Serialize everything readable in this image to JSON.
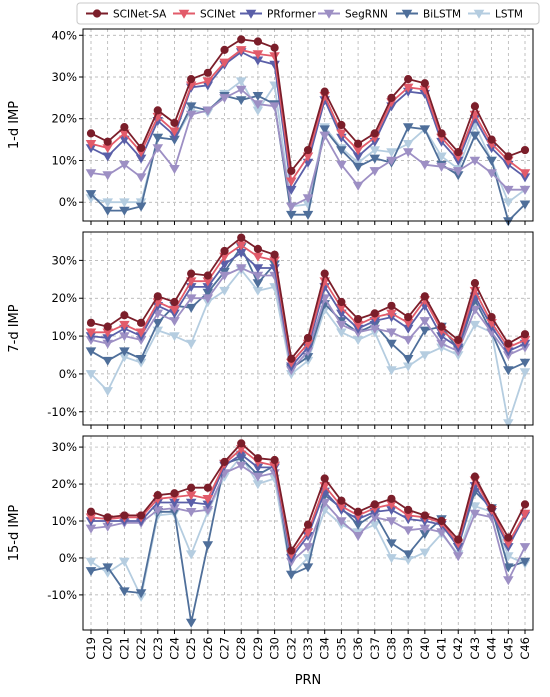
{
  "chart_data": {
    "type": "line",
    "xlabel": "PRN",
    "categories": [
      "C19",
      "C20",
      "C21",
      "C22",
      "C23",
      "C24",
      "C25",
      "C26",
      "C27",
      "C28",
      "C29",
      "C30",
      "C32",
      "C33",
      "C34",
      "C35",
      "C36",
      "C37",
      "C38",
      "C39",
      "C40",
      "C41",
      "C42",
      "C43",
      "C44",
      "C45",
      "C46"
    ],
    "legend": {
      "placement": "top",
      "entries": [
        {
          "name": "SCINet-SA",
          "color": "#7b1e2a",
          "marker": "circle"
        },
        {
          "name": "SCINet",
          "color": "#e25b6a",
          "marker": "triangle-down"
        },
        {
          "name": "PRformer",
          "color": "#5a5fa8",
          "marker": "triangle-down"
        },
        {
          "name": "SegRNN",
          "color": "#9d8fc4",
          "marker": "triangle-down"
        },
        {
          "name": "BiLSTM",
          "color": "#4f6f9a",
          "marker": "triangle-down"
        },
        {
          "name": "LSTM",
          "color": "#b5cde0",
          "marker": "triangle-down"
        }
      ]
    },
    "grid": true,
    "panels": [
      {
        "ylabel": "1-d IMP",
        "ylim": [
          -4.5,
          41.5
        ],
        "yticks": [
          0,
          10,
          20,
          30,
          40
        ],
        "ytick_labels": [
          "0%",
          "10%",
          "20%",
          "30%",
          "40%"
        ],
        "series": [
          {
            "name": "SCINet-SA",
            "values": [
              16.5,
              14.5,
              18,
              13,
              22,
              19,
              29.5,
              31,
              36.5,
              39,
              38.5,
              37,
              7.5,
              12.5,
              26.5,
              18.5,
              14,
              16.5,
              25,
              29.5,
              28.5,
              16.5,
              12,
              23,
              15,
              11,
              12.5
            ]
          },
          {
            "name": "SCINet",
            "values": [
              14,
              13,
              16.5,
              12,
              20.5,
              17,
              28,
              29,
              33.5,
              36.5,
              35.5,
              35,
              5,
              11,
              25.5,
              16.5,
              12.5,
              15.5,
              24,
              27.5,
              27,
              15.5,
              11,
              21,
              14,
              10,
              7
            ]
          },
          {
            "name": "PRformer",
            "values": [
              13,
              11,
              15,
              10.5,
              19.5,
              16,
              27.5,
              28,
              33,
              36,
              34,
              33,
              3,
              9.5,
              24.5,
              15.5,
              11,
              14.5,
              23,
              26.5,
              26,
              14.5,
              10,
              20,
              13,
              9,
              6
            ]
          },
          {
            "name": "SegRNN",
            "values": [
              7,
              6.5,
              9,
              6,
              13,
              8,
              21,
              22,
              25,
              27,
              23.5,
              23,
              -1,
              1,
              16,
              9,
              4,
              7.5,
              10,
              12,
              9,
              8.5,
              7.5,
              10,
              7,
              3,
              3
            ]
          },
          {
            "name": "BiLSTM",
            "values": [
              2,
              -2,
              -2,
              -1,
              15.5,
              15,
              23,
              22,
              25.5,
              24.5,
              25.5,
              23.5,
              -3,
              -3,
              17.5,
              12.5,
              8.5,
              10.5,
              9.5,
              18,
              17.5,
              9,
              6.5,
              16,
              10,
              -4.5,
              -0.5
            ]
          },
          {
            "name": "LSTM",
            "values": [
              1,
              0,
              0,
              0,
              15.5,
              15,
              22,
              21.5,
              26,
              29,
              22,
              28,
              -1,
              -0.5,
              18,
              13,
              9.5,
              12.5,
              12,
              14,
              17.5,
              11,
              8,
              18.5,
              10,
              0,
              3
            ]
          }
        ]
      },
      {
        "ylabel": "7-d IMP",
        "ylim": [
          -13.5,
          37.5
        ],
        "yticks": [
          -10,
          0,
          10,
          20,
          30
        ],
        "ytick_labels": [
          "-10%",
          "0%",
          "10%",
          "20%",
          "30%"
        ],
        "series": [
          {
            "name": "SCINet-SA",
            "values": [
              13.5,
              12.5,
              15.5,
              13.5,
              20.5,
              19,
              26.5,
              26,
              32.5,
              36,
              33,
              31.5,
              4,
              9.5,
              26.5,
              19,
              14.5,
              16,
              18,
              15,
              20.5,
              12.5,
              9,
              24,
              15,
              8,
              10.5
            ]
          },
          {
            "name": "SCINet",
            "values": [
              11,
              11,
              13,
              11,
              19,
              17,
              24.5,
              24.5,
              31,
              34,
              31,
              30,
              3,
              8,
              24.5,
              17.5,
              13,
              15,
              16,
              13.5,
              19.5,
              11.5,
              8,
              22,
              13.5,
              7,
              9
            ]
          },
          {
            "name": "PRformer",
            "values": [
              10,
              9.5,
              12,
              10,
              18,
              16,
              23,
              23,
              29,
              32,
              28,
              28,
              2,
              7,
              23,
              16,
              12,
              14,
              15,
              12,
              18,
              10,
              7,
              20.5,
              12.5,
              6,
              8
            ]
          },
          {
            "name": "SegRNN",
            "values": [
              9,
              8,
              10,
              9,
              16,
              14,
              20,
              20,
              26,
              28,
              26,
              26,
              1,
              6,
              20,
              13,
              11,
              12,
              11,
              9,
              14,
              8,
              6,
              17,
              11,
              5,
              7
            ]
          },
          {
            "name": "BiLSTM",
            "values": [
              6,
              3.5,
              6,
              4,
              13.5,
              18,
              17.5,
              21.5,
              27,
              33.5,
              24,
              29,
              1.5,
              4.5,
              18.5,
              14,
              11,
              13,
              8,
              4,
              11.5,
              12.5,
              6.5,
              19.5,
              11,
              1,
              3
            ]
          },
          {
            "name": "LSTM",
            "values": [
              0,
              -4.5,
              4.5,
              3,
              11.5,
              10,
              8,
              19,
              22,
              27.5,
              22,
              23,
              0,
              3.5,
              17,
              11,
              9,
              11,
              1,
              2,
              5,
              7,
              5,
              13,
              11,
              -13,
              0.5
            ]
          }
        ]
      },
      {
        "ylabel": "15-d IMP",
        "ylim": [
          -19.5,
          33
        ],
        "yticks": [
          -10,
          0,
          10,
          20,
          30
        ],
        "ytick_labels": [
          "-10%",
          "0%",
          "10%",
          "20%",
          "30%"
        ],
        "series": [
          {
            "name": "SCINet-SA",
            "values": [
              12.5,
              11,
              11.5,
              11.5,
              17,
              17.5,
              19,
              19,
              26,
              31,
              27,
              26.5,
              2,
              9,
              21.5,
              15.5,
              12.5,
              14.5,
              16,
              13,
              11.5,
              10,
              5,
              22,
              13.5,
              5.5,
              14.5
            ]
          },
          {
            "name": "SCINet",
            "values": [
              11,
              10.5,
              11,
              11,
              16,
              16.5,
              17,
              16,
              25.5,
              29.5,
              26,
              25,
              1,
              7,
              19.5,
              14,
              11.5,
              13.5,
              14.5,
              11.5,
              11,
              9.5,
              4,
              21,
              13,
              4,
              12
            ]
          },
          {
            "name": "PRformer",
            "values": [
              10,
              10,
              10,
              10,
              15,
              15,
              15,
              14.5,
              25,
              28,
              24.5,
              24.5,
              0,
              6,
              18,
              13,
              10.5,
              12.5,
              13,
              10.5,
              10,
              9,
              3,
              19.5,
              12.5,
              3,
              11.5
            ]
          },
          {
            "name": "SegRNN",
            "values": [
              8,
              8.5,
              9.5,
              9.5,
              13,
              13.5,
              12.5,
              13,
              23,
              25,
              22,
              23,
              -1,
              3,
              15,
              10,
              6,
              11,
              10,
              7.5,
              8,
              7,
              0.5,
              12,
              11,
              -6,
              3
            ]
          },
          {
            "name": "BiLSTM",
            "values": [
              -3.5,
              -2.5,
              -9,
              -9.5,
              12.5,
              12.5,
              -17.5,
              3.5,
              25.5,
              27,
              22.5,
              25,
              -4.5,
              -2.5,
              17,
              13.5,
              9,
              12,
              4,
              1,
              6.5,
              10.5,
              3,
              18,
              13.5,
              -2.5,
              -1
            ]
          },
          {
            "name": "LSTM",
            "values": [
              -1,
              -4,
              -1,
              -10.5,
              11.5,
              12,
              1,
              12.5,
              22,
              27.5,
              20,
              21.5,
              -4.5,
              0,
              13,
              9,
              7,
              9,
              0,
              -0.5,
              1.5,
              6.5,
              1,
              14,
              12.5,
              0.5,
              -1.5
            ]
          }
        ]
      }
    ]
  }
}
